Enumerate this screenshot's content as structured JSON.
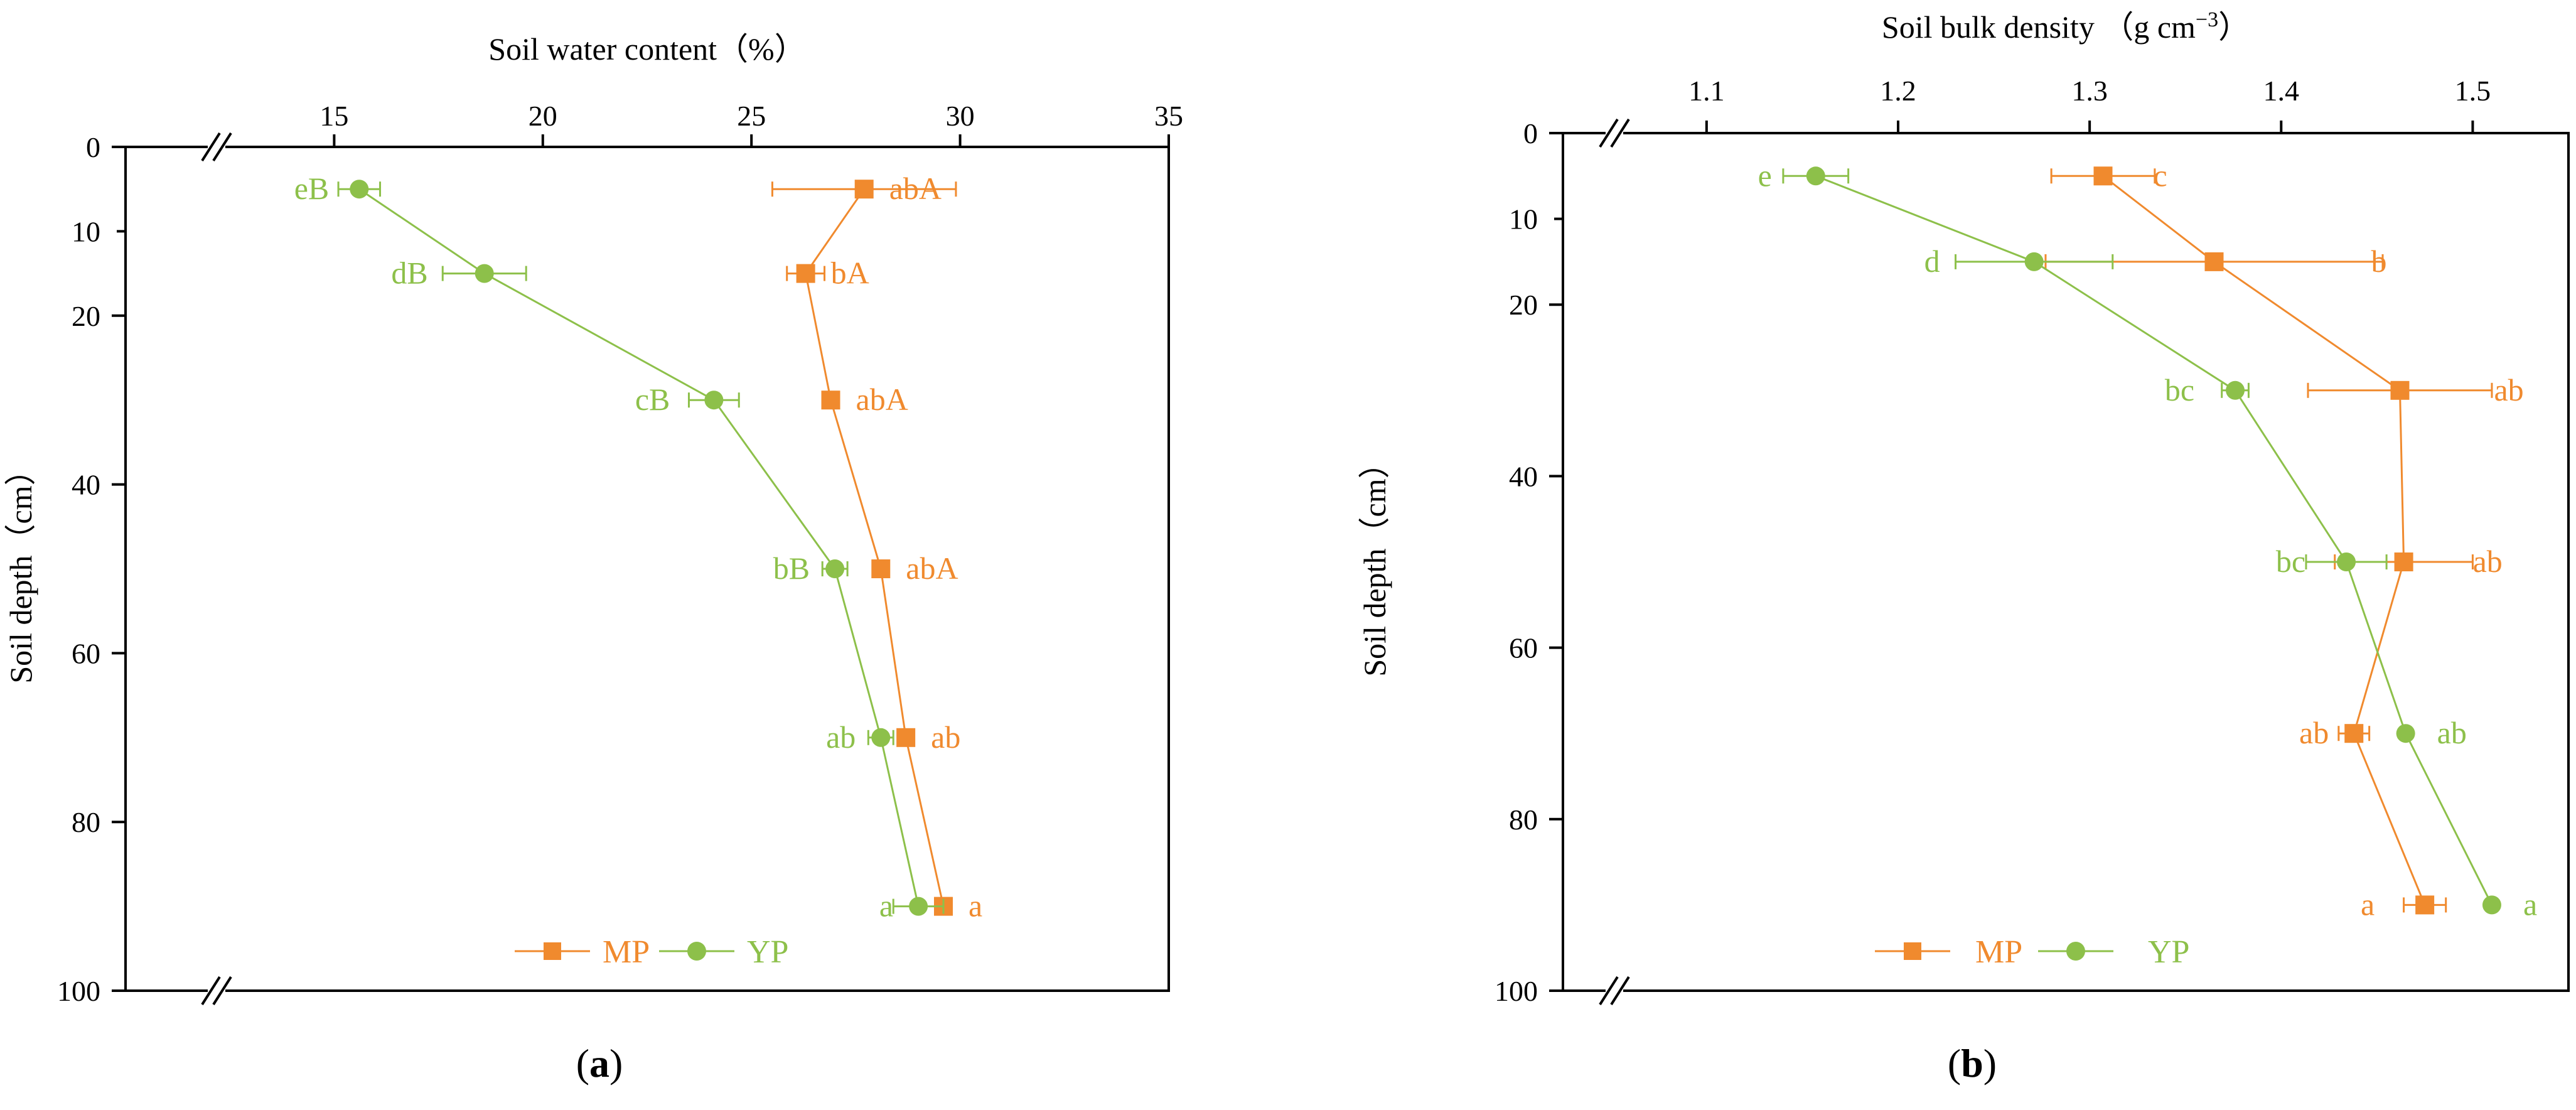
{
  "colors": {
    "mp": "#F08A2E",
    "yp": "#8DC04A",
    "axis": "#000000"
  },
  "chart_data": [
    {
      "type": "line",
      "panel_label": "a",
      "title": "",
      "xlabel": "Soil water content（%）",
      "ylabel": "Soil depth（cm）",
      "xlim": [
        10,
        35
      ],
      "ylim": [
        0,
        100
      ],
      "x_ticks": [
        15,
        20,
        25,
        30,
        35
      ],
      "y_ticks": [
        0,
        20,
        40,
        60,
        80,
        100
      ],
      "y_minor_ticks": [
        10
      ],
      "axis_break": true,
      "legend": {
        "position": "bottom-center",
        "entries": [
          "MP",
          "YP"
        ]
      },
      "series": [
        {
          "name": "MP",
          "marker": "square",
          "points": [
            {
              "depth": 5,
              "value": 27.7,
              "err": 2.2,
              "label": "abA"
            },
            {
              "depth": 15,
              "value": 26.3,
              "err": 0.45,
              "label": "bA"
            },
            {
              "depth": 30,
              "value": 26.9,
              "err": 0.0,
              "label": "abA"
            },
            {
              "depth": 50,
              "value": 28.1,
              "err": 0.0,
              "label": "abA"
            },
            {
              "depth": 70,
              "value": 28.7,
              "err": 0.0,
              "label": "ab"
            },
            {
              "depth": 90,
              "value": 29.6,
              "err": 0.0,
              "label": "a"
            }
          ]
        },
        {
          "name": "YP",
          "marker": "circle",
          "points": [
            {
              "depth": 5,
              "value": 15.6,
              "err": 0.5,
              "label": "eB"
            },
            {
              "depth": 15,
              "value": 18.6,
              "err": 1.0,
              "label": "dB"
            },
            {
              "depth": 30,
              "value": 24.1,
              "err": 0.6,
              "label": "cB"
            },
            {
              "depth": 50,
              "value": 27.0,
              "err": 0.3,
              "label": "bB"
            },
            {
              "depth": 70,
              "value": 28.1,
              "err": 0.3,
              "label": "ab"
            },
            {
              "depth": 90,
              "value": 29.0,
              "err": 0.6,
              "label": "a"
            }
          ]
        }
      ]
    },
    {
      "type": "line",
      "panel_label": "b",
      "title": "",
      "xlabel": "Soil bulk density （g cm",
      "xlabel_sup": "−3",
      "xlabel_end": "）",
      "ylabel": "Soil depth（cm）",
      "xlim": [
        1.025,
        1.55
      ],
      "ylim": [
        0,
        100
      ],
      "x_ticks": [
        1.1,
        1.2,
        1.3,
        1.4,
        1.5
      ],
      "y_ticks": [
        0,
        20,
        40,
        60,
        80,
        100
      ],
      "y_minor_ticks": [
        10
      ],
      "axis_break": true,
      "legend": {
        "position": "bottom-center",
        "entries": [
          "MP",
          "YP"
        ]
      },
      "series": [
        {
          "name": "MP",
          "marker": "square",
          "points": [
            {
              "depth": 5,
              "value": 1.307,
              "err": 0.027,
              "label": "c"
            },
            {
              "depth": 15,
              "value": 1.365,
              "err": 0.088,
              "label": "b"
            },
            {
              "depth": 30,
              "value": 1.462,
              "err": 0.048,
              "label": "ab"
            },
            {
              "depth": 50,
              "value": 1.464,
              "err": 0.036,
              "label": "ab"
            },
            {
              "depth": 70,
              "value": 1.438,
              "err": 0.008,
              "label": "ab"
            },
            {
              "depth": 90,
              "value": 1.475,
              "err": 0.011,
              "label": "a"
            }
          ]
        },
        {
          "name": "YP",
          "marker": "circle",
          "points": [
            {
              "depth": 5,
              "value": 1.157,
              "err": 0.017,
              "label": "e"
            },
            {
              "depth": 15,
              "value": 1.271,
              "err": 0.041,
              "label": "d"
            },
            {
              "depth": 30,
              "value": 1.376,
              "err": 0.007,
              "label": "bc"
            },
            {
              "depth": 50,
              "value": 1.434,
              "err": 0.021,
              "label": "bc"
            },
            {
              "depth": 70,
              "value": 1.465,
              "err": 0.0,
              "label": "ab"
            },
            {
              "depth": 90,
              "value": 1.51,
              "err": 0.0,
              "label": "a"
            }
          ]
        }
      ]
    }
  ]
}
